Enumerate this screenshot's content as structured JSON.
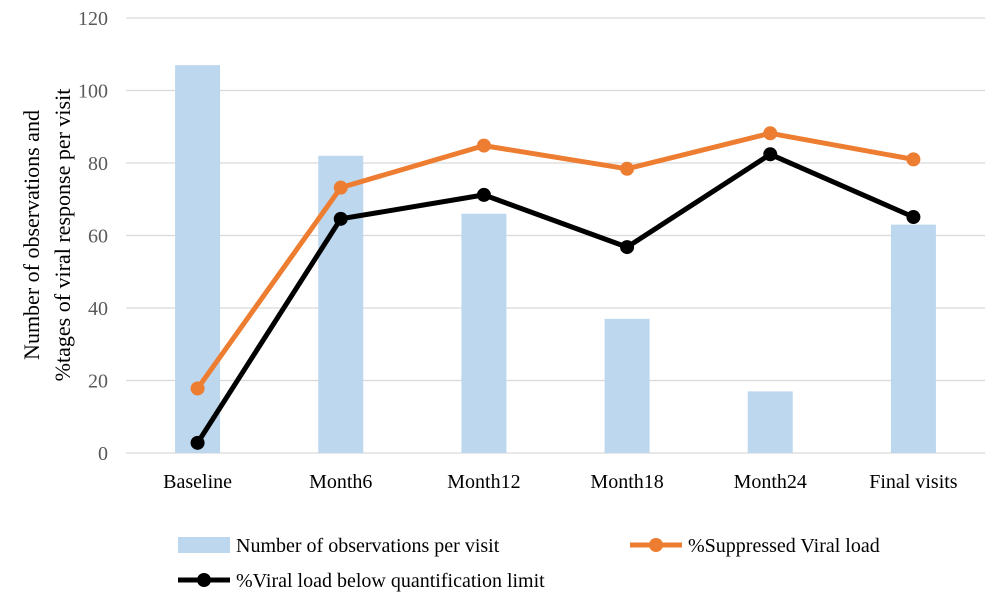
{
  "chart_data": {
    "type": "bar",
    "categories": [
      "Baseline",
      "Month6",
      "Month12",
      "Month18",
      "Month24",
      "Final visits"
    ],
    "ylabel_lines": [
      "Number of observations and",
      "%tages of viral response per visit"
    ],
    "ylim": [
      0,
      120
    ],
    "yticks": [
      0,
      20,
      40,
      60,
      80,
      100,
      120
    ],
    "grid": true,
    "legend_position": "bottom",
    "series": [
      {
        "name": "Number of observations per visit",
        "kind": "bar",
        "color": "#bdd7ee",
        "values": [
          107,
          82,
          66,
          37,
          17,
          63
        ]
      },
      {
        "name": "%Suppressed Viral load",
        "kind": "line",
        "color": "#ed7d31",
        "values": [
          17.8,
          73.2,
          84.8,
          78.4,
          88.2,
          81.0
        ]
      },
      {
        "name": "%Viral load below quantification limit",
        "kind": "line",
        "color": "#000000",
        "values": [
          2.8,
          64.6,
          71.2,
          56.8,
          82.4,
          65.1
        ]
      }
    ]
  }
}
